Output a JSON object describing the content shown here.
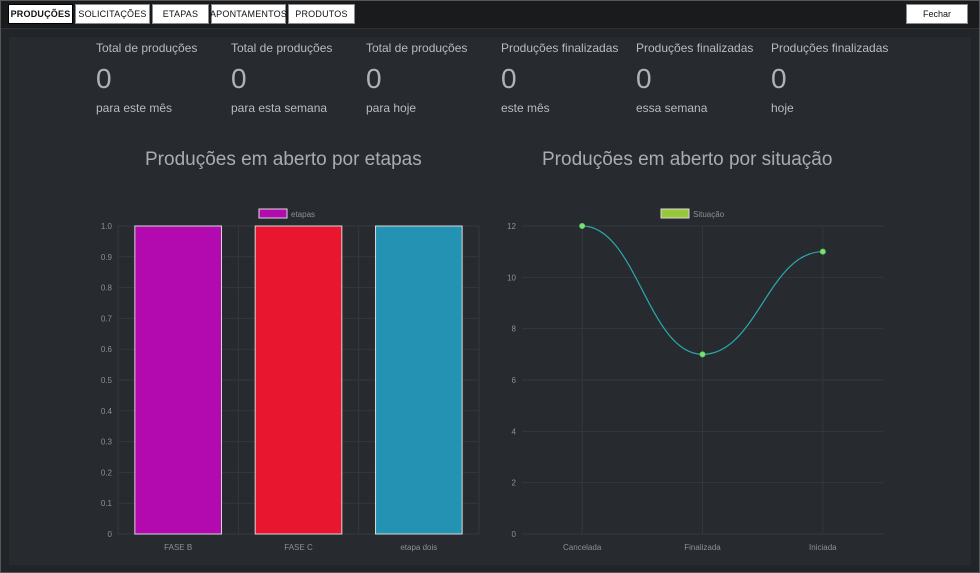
{
  "nav": {
    "tabs": [
      {
        "label": "PRODUÇÕES",
        "active": true
      },
      {
        "label": "SOLICITAÇÕES",
        "active": false
      },
      {
        "label": "ETAPAS",
        "active": false
      },
      {
        "label": "APONTAMENTOS",
        "active": false
      },
      {
        "label": "PRODUTOS",
        "active": false
      }
    ],
    "close_label": "Fechar"
  },
  "stats": [
    {
      "title": "Total de produções",
      "value": "0",
      "subtitle": "para este mês"
    },
    {
      "title": "Total de produções",
      "value": "0",
      "subtitle": "para esta semana"
    },
    {
      "title": "Total de produções",
      "value": "0",
      "subtitle": "para hoje"
    },
    {
      "title": "Produções finalizadas",
      "value": "0",
      "subtitle": "este mês"
    },
    {
      "title": "Produções finalizadas",
      "value": "0",
      "subtitle": "essa semana"
    },
    {
      "title": "Produções finalizadas",
      "value": "0",
      "subtitle": "hoje"
    }
  ],
  "chart_data": [
    {
      "type": "bar",
      "title": "Produções em aberto por etapas",
      "categories": [
        "FASE B",
        "FASE C",
        "etapa dois"
      ],
      "series": [
        {
          "name": "etapas",
          "values": [
            1,
            1,
            1
          ]
        }
      ],
      "colors": [
        "#b30aaf",
        "#e8172f",
        "#2493b3"
      ],
      "legend_color": "#b30aaf",
      "ylim": [
        0,
        1.0
      ],
      "yticks": [
        "0",
        "0.1",
        "0.2",
        "0.3",
        "0.4",
        "0.5",
        "0.6",
        "0.7",
        "0.8",
        "0.9",
        "1.0"
      ],
      "grid": true,
      "legend": "top-center"
    },
    {
      "type": "line",
      "title": "Produções em aberto por situação",
      "categories": [
        "Cancelada",
        "Finalizada",
        "Iniciada"
      ],
      "series": [
        {
          "name": "Situação",
          "values": [
            12,
            7,
            11
          ]
        }
      ],
      "line_color": "#2aa8b0",
      "point_color": "#7fe07a",
      "legend_color": "#97c83a",
      "ylim": [
        0,
        12
      ],
      "yticks": [
        "0",
        "2",
        "4",
        "6",
        "8",
        "10",
        "12"
      ],
      "grid": true,
      "legend": "top-center"
    }
  ]
}
